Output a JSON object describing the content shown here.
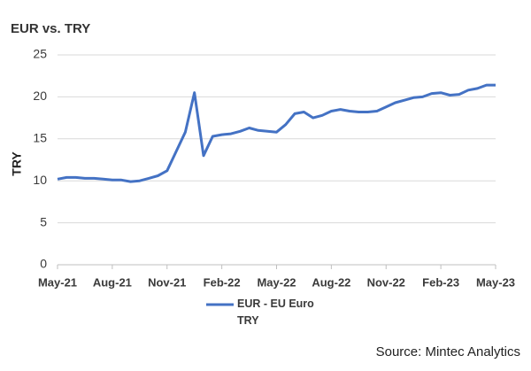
{
  "chart_data": {
    "type": "line",
    "title": "EUR vs. TRY",
    "y_label": "TRY",
    "source": "Source: Mintec Analytics",
    "categories": [
      "May-21",
      null,
      null,
      null,
      null,
      null,
      "Aug-21",
      null,
      null,
      null,
      null,
      null,
      "Nov-21",
      null,
      null,
      null,
      null,
      null,
      "Feb-22",
      null,
      null,
      null,
      null,
      null,
      "May-22",
      null,
      null,
      null,
      null,
      null,
      "Aug-22",
      null,
      null,
      null,
      null,
      null,
      "Nov-22",
      null,
      null,
      null,
      null,
      null,
      "Feb-23",
      null,
      null,
      null,
      null,
      null,
      "May-23"
    ],
    "series": [
      {
        "name": "EUR - EU Euro TRY",
        "color": "#4472c4",
        "values": [
          10.2,
          10.4,
          10.4,
          10.3,
          10.3,
          10.2,
          10.1,
          10.1,
          9.9,
          10.0,
          10.3,
          10.6,
          11.2,
          13.5,
          15.8,
          20.5,
          13.0,
          15.3,
          15.5,
          15.6,
          15.9,
          16.3,
          16.0,
          15.9,
          15.8,
          16.7,
          18.0,
          18.2,
          17.5,
          17.8,
          18.3,
          18.5,
          18.3,
          18.2,
          18.2,
          18.3,
          18.8,
          19.3,
          19.6,
          19.9,
          20.0,
          20.4,
          20.5,
          20.2,
          20.3,
          20.8,
          21.0,
          21.4,
          21.4
        ]
      }
    ],
    "ylim": [
      0,
      25
    ],
    "yticks": [
      0,
      5,
      10,
      15,
      20,
      25
    ],
    "grid": true
  }
}
